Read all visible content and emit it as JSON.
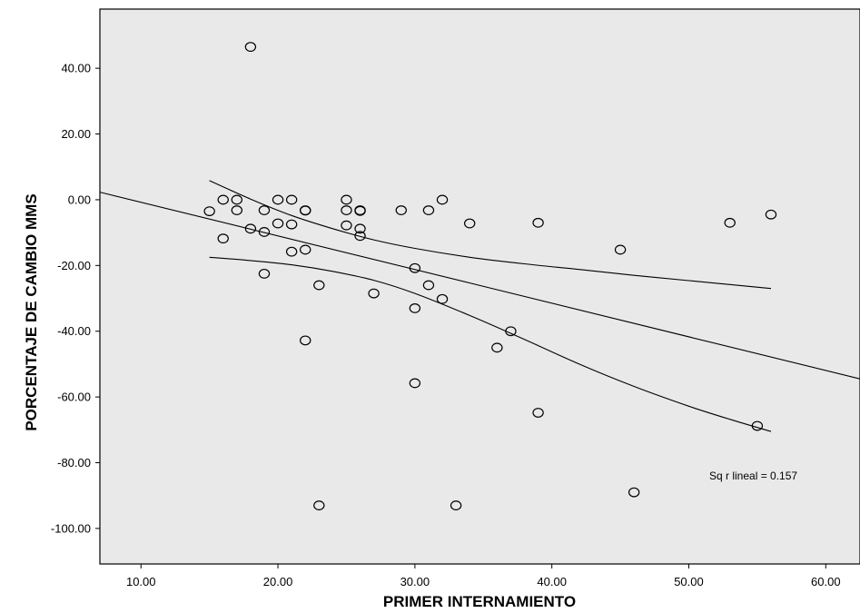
{
  "chart_data": {
    "type": "scatter",
    "xlabel": "PRIMER INTERNAMIENTO",
    "ylabel": "PORCENTAJE DE CAMBIO MMS",
    "xlim": [
      7.0,
      62.5
    ],
    "ylim": [
      -110.8,
      58.0
    ],
    "xticks": [
      "10.00",
      "20.00",
      "30.00",
      "40.00",
      "50.00",
      "60.00"
    ],
    "yticks": [
      "40.00",
      "20.00",
      "0.00",
      "-20.00",
      "-40.00",
      "-60.00",
      "-80.00",
      "-100.00"
    ],
    "xtick_values": [
      10,
      20,
      30,
      40,
      50,
      60
    ],
    "ytick_values": [
      40,
      20,
      0,
      -20,
      -40,
      -60,
      -80,
      -100
    ],
    "plot_background": "#e9e9e9",
    "marker": "open-circle",
    "grid": false,
    "annotation": "Sq r lineal = 0.157",
    "points": [
      {
        "x": 18,
        "y": 46.5
      },
      {
        "x": 15,
        "y": -3.5
      },
      {
        "x": 16,
        "y": 0
      },
      {
        "x": 17,
        "y": 0
      },
      {
        "x": 17,
        "y": -3.2
      },
      {
        "x": 16,
        "y": -11.8
      },
      {
        "x": 18,
        "y": -8.8
      },
      {
        "x": 19,
        "y": -3.2
      },
      {
        "x": 19,
        "y": -9.8
      },
      {
        "x": 19,
        "y": -22.5
      },
      {
        "x": 20,
        "y": 0
      },
      {
        "x": 20,
        "y": -7.2
      },
      {
        "x": 21,
        "y": 0
      },
      {
        "x": 21,
        "y": -7.5
      },
      {
        "x": 21,
        "y": -15.8
      },
      {
        "x": 22,
        "y": -3.2
      },
      {
        "x": 22,
        "y": -3.3
      },
      {
        "x": 22,
        "y": -15.2
      },
      {
        "x": 22,
        "y": -42.8
      },
      {
        "x": 23,
        "y": -26.0
      },
      {
        "x": 23,
        "y": -93.0
      },
      {
        "x": 25,
        "y": 0
      },
      {
        "x": 25,
        "y": -3.2
      },
      {
        "x": 25,
        "y": -7.8
      },
      {
        "x": 26,
        "y": -3.2
      },
      {
        "x": 26,
        "y": -3.4
      },
      {
        "x": 26,
        "y": -8.8
      },
      {
        "x": 26,
        "y": -11.0
      },
      {
        "x": 27,
        "y": -28.5
      },
      {
        "x": 29,
        "y": -3.2
      },
      {
        "x": 30,
        "y": -20.8
      },
      {
        "x": 30,
        "y": -33.0
      },
      {
        "x": 30,
        "y": -55.8
      },
      {
        "x": 31,
        "y": -3.2
      },
      {
        "x": 31,
        "y": -26.0
      },
      {
        "x": 32,
        "y": 0
      },
      {
        "x": 32,
        "y": -30.2
      },
      {
        "x": 33,
        "y": -93.0
      },
      {
        "x": 34,
        "y": -7.2
      },
      {
        "x": 36,
        "y": -45.0
      },
      {
        "x": 37,
        "y": -40.0
      },
      {
        "x": 39,
        "y": -7.0
      },
      {
        "x": 39,
        "y": -64.8
      },
      {
        "x": 45,
        "y": -15.2
      },
      {
        "x": 46,
        "y": -89.0
      },
      {
        "x": 53,
        "y": -7.0
      },
      {
        "x": 55,
        "y": -68.8
      },
      {
        "x": 56,
        "y": -4.5
      }
    ],
    "fit_line": [
      {
        "x": 7.0,
        "y": 2.3
      },
      {
        "x": 62.5,
        "y": -54.5
      }
    ],
    "ci_upper": [
      {
        "x": 15,
        "y": 5.8
      },
      {
        "x": 18,
        "y": 0.2
      },
      {
        "x": 21,
        "y": -4.8
      },
      {
        "x": 24,
        "y": -8.8
      },
      {
        "x": 27,
        "y": -12.2
      },
      {
        "x": 30,
        "y": -14.8
      },
      {
        "x": 34,
        "y": -17.5
      },
      {
        "x": 38,
        "y": -19.5
      },
      {
        "x": 42,
        "y": -21.2
      },
      {
        "x": 46,
        "y": -23.0
      },
      {
        "x": 50,
        "y": -24.6
      },
      {
        "x": 53,
        "y": -25.8
      },
      {
        "x": 56,
        "y": -27.0
      }
    ],
    "ci_lower": [
      {
        "x": 15,
        "y": -17.5
      },
      {
        "x": 18,
        "y": -18.5
      },
      {
        "x": 21,
        "y": -19.8
      },
      {
        "x": 24,
        "y": -21.8
      },
      {
        "x": 27,
        "y": -24.5
      },
      {
        "x": 30,
        "y": -28.5
      },
      {
        "x": 34,
        "y": -35.2
      },
      {
        "x": 38,
        "y": -42.5
      },
      {
        "x": 42,
        "y": -50.0
      },
      {
        "x": 46,
        "y": -56.8
      },
      {
        "x": 50,
        "y": -62.8
      },
      {
        "x": 53,
        "y": -66.8
      },
      {
        "x": 56,
        "y": -70.5
      }
    ]
  }
}
